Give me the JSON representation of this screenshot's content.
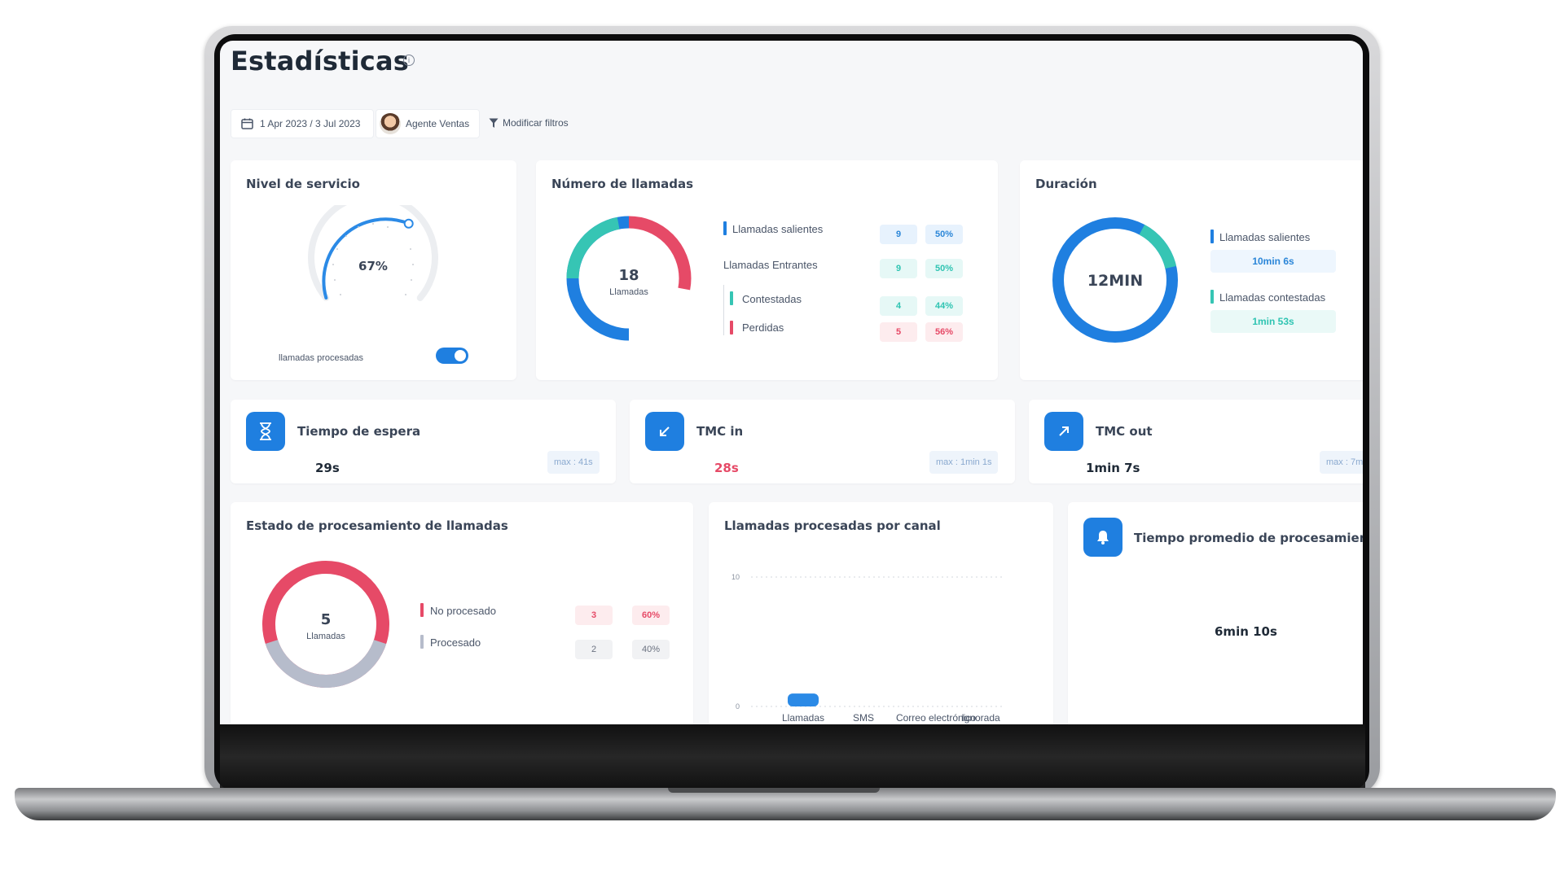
{
  "page": {
    "title": "Estadísticas"
  },
  "filters": {
    "date_range": "1 Apr 2023 / 3 Jul 2023",
    "agent": "Agente Ventas",
    "modify": "Modificar filtros"
  },
  "service_level": {
    "title": "Nivel de servicio",
    "percent_label": "67%",
    "percent": 0.67,
    "toggle_label": "llamadas procesadas",
    "toggle_on": true
  },
  "calls": {
    "title": "Número de llamadas",
    "total": "18",
    "total_label": "Llamadas",
    "outgoing": {
      "label": "Llamadas salientes",
      "count": "9",
      "pct": "50%"
    },
    "incoming": {
      "label": "Llamadas Entrantes",
      "count": "9",
      "pct": "50%"
    },
    "answered": {
      "label": "Contestadas",
      "count": "4",
      "pct": "44%"
    },
    "lost": {
      "label": "Perdidas",
      "count": "5",
      "pct": "56%"
    }
  },
  "duration": {
    "title": "Duración",
    "total": "12MIN",
    "outgoing": {
      "label": "Llamadas salientes",
      "value": "10min 6s"
    },
    "answered": {
      "label": "Llamadas contestadas",
      "value": "1min 53s"
    }
  },
  "kpis": [
    {
      "title": "Tiempo de espera",
      "value": "29s",
      "max": "max : 41s"
    },
    {
      "title": "TMC in",
      "value": "28s",
      "max": "max : 1min 1s"
    },
    {
      "title": "TMC out",
      "value": "1min 7s",
      "max": "max : 7m"
    }
  ],
  "processing_status": {
    "title": "Estado de procesamiento de llamadas",
    "total": "5",
    "total_label": "Llamadas",
    "not_processed": {
      "label": "No procesado",
      "count": "3",
      "pct": "60%"
    },
    "processed": {
      "label": "Procesado",
      "count": "2",
      "pct": "40%"
    }
  },
  "by_channel": {
    "title": "Llamadas procesadas por canal",
    "chart_data": {
      "type": "bar",
      "categories": [
        "Llamadas",
        "SMS",
        "Correo electrónico",
        "Ignorada"
      ],
      "values": [
        1,
        0,
        0,
        0
      ],
      "yticks": [
        "10",
        "0"
      ],
      "ylim": [
        0,
        10
      ]
    }
  },
  "avg_processing": {
    "title": "Tiempo promedio de procesamiento",
    "value": "6min 10s"
  },
  "colors": {
    "blue": "#1f7fe0",
    "teal": "#36c5b4",
    "red": "#e64a67",
    "gray": "#b6bccb"
  }
}
